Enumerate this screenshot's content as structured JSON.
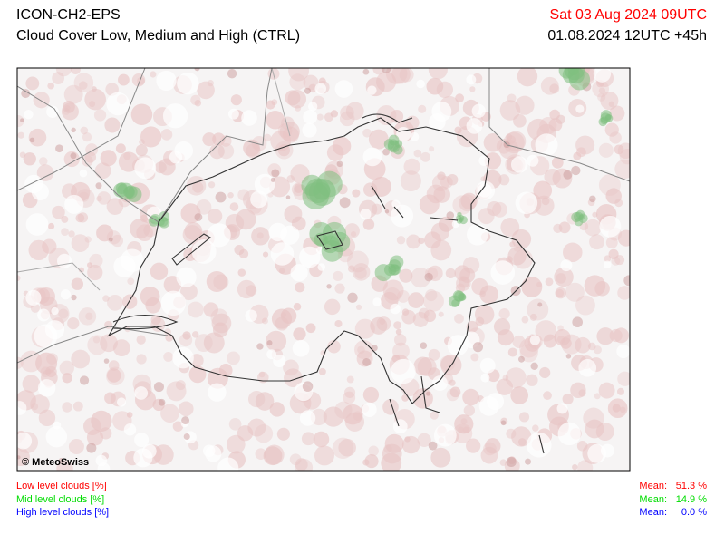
{
  "header": {
    "model": "ICON-CH2-EPS",
    "title": "Cloud Cover Low, Medium and High (CTRL)",
    "valid_time": "Sat 03 Aug 2024 09UTC",
    "run": "01.08.2024 12UTC +45h"
  },
  "map": {
    "credit": "© MeteoSwiss"
  },
  "legend": [
    {
      "label": "Low level clouds [%]",
      "mean_label": "Mean:",
      "mean": "51.3 %",
      "color": "#ff0000"
    },
    {
      "label": "Mid level clouds [%]",
      "mean_label": "Mean:",
      "mean": "14.9 %",
      "color": "#00dd00"
    },
    {
      "label": "High level clouds [%]",
      "mean_label": "Mean:",
      "mean": "0.0 %",
      "color": "#0000ff"
    }
  ]
}
